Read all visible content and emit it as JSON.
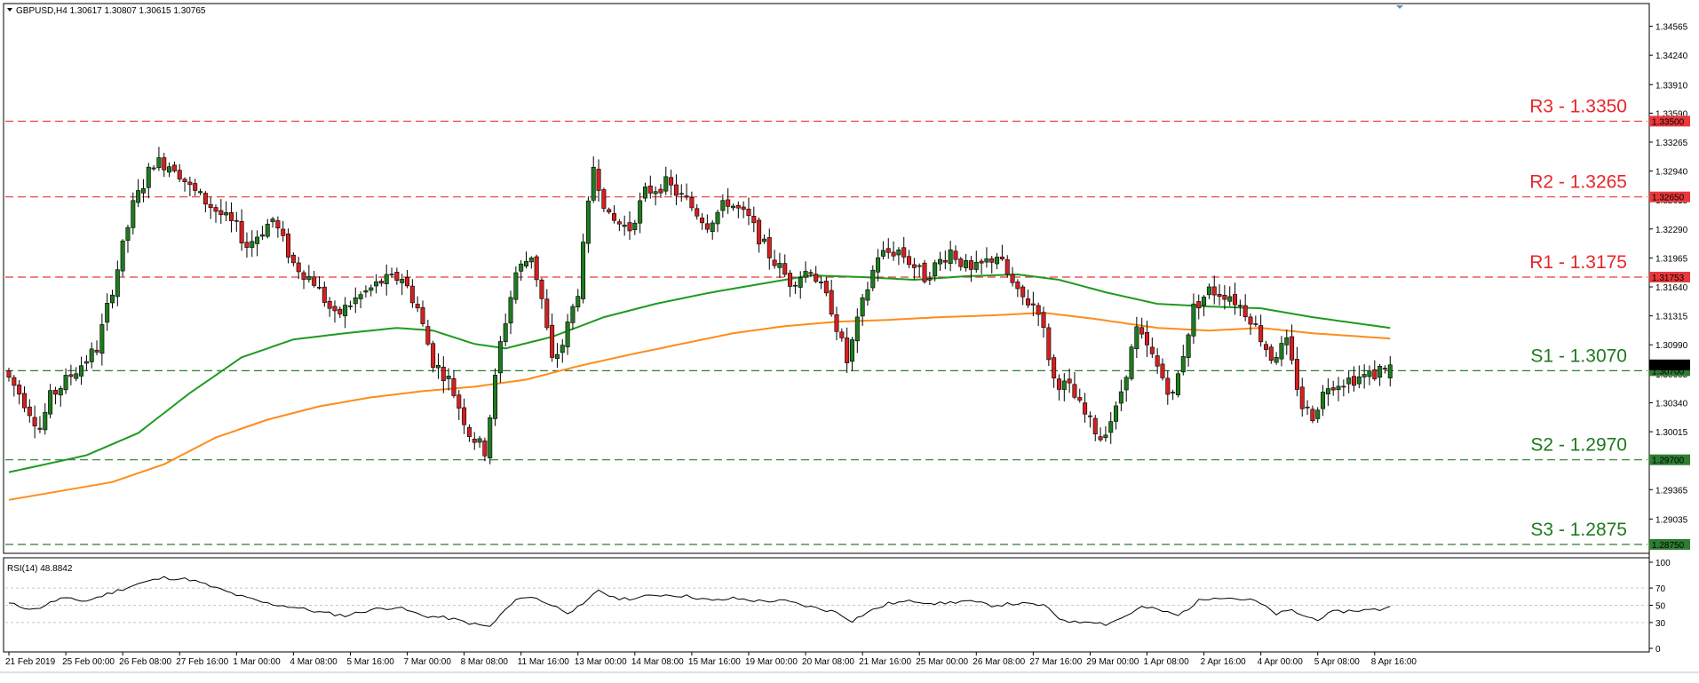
{
  "colors": {
    "bull": "#1f7a1f",
    "bear": "#d32020",
    "resistance": "#e8383a",
    "support": "#2e7d32",
    "ma_fast": "#1f9a1f",
    "ma_slow": "#ff8c1a",
    "rsi_line": "#000000",
    "grid": "#c8c8c8"
  },
  "header": {
    "symbol_line": "GBPUSD,H4  1.30617 1.30807 1.30615 1.30765",
    "rsi_label": "RSI(14) 48.8842"
  },
  "chart_data": {
    "type": "candlestick",
    "symbol": "GBPUSD",
    "timeframe": "H4",
    "ylim": [
      1.2867,
      1.348
    ],
    "y_ticks": [
      "1.34565",
      "1.34240",
      "1.33910",
      "1.33590",
      "1.33265",
      "1.32940",
      "1.32615",
      "1.32290",
      "1.31965",
      "1.31640",
      "1.31315",
      "1.30990",
      "1.30665",
      "1.30340",
      "1.30015",
      "1.29690",
      "1.29365",
      "1.29035"
    ],
    "x_labels": [
      {
        "i": 0,
        "text": "21 Feb 2019"
      },
      {
        "i": 11,
        "text": "25 Feb 00:00"
      },
      {
        "i": 22,
        "text": "26 Feb 08:00"
      },
      {
        "i": 33,
        "text": "27 Feb 16:00"
      },
      {
        "i": 44,
        "text": "1 Mar 00:00"
      },
      {
        "i": 55,
        "text": "4 Mar 08:00"
      },
      {
        "i": 66,
        "text": "5 Mar 16:00"
      },
      {
        "i": 77,
        "text": "7 Mar 00:00"
      },
      {
        "i": 88,
        "text": "8 Mar 08:00"
      },
      {
        "i": 99,
        "text": "11 Mar 16:00"
      },
      {
        "i": 110,
        "text": "13 Mar 00:00"
      },
      {
        "i": 121,
        "text": "14 Mar 08:00"
      },
      {
        "i": 132,
        "text": "15 Mar 16:00"
      },
      {
        "i": 143,
        "text": "19 Mar 00:00"
      },
      {
        "i": 154,
        "text": "20 Mar 08:00"
      },
      {
        "i": 165,
        "text": "21 Mar 16:00"
      },
      {
        "i": 176,
        "text": "25 Mar 00:00"
      },
      {
        "i": 187,
        "text": "26 Mar 08:00"
      },
      {
        "i": 198,
        "text": "27 Mar 16:00"
      },
      {
        "i": 209,
        "text": "29 Mar 00:00"
      },
      {
        "i": 220,
        "text": "1 Apr 08:00"
      },
      {
        "i": 231,
        "text": "2 Apr 16:00"
      },
      {
        "i": 242,
        "text": "4 Apr 00:00"
      },
      {
        "i": 253,
        "text": "5 Apr 08:00"
      },
      {
        "i": 264,
        "text": "8 Apr 16:00"
      }
    ],
    "levels": [
      {
        "name": "R3",
        "label": "R3 - 1.3350",
        "price": 1.335,
        "tag": "1.33500",
        "kind": "resistance"
      },
      {
        "name": "R2",
        "label": "R2 - 1.3265",
        "price": 1.3265,
        "tag": "1.32650",
        "kind": "resistance"
      },
      {
        "name": "R1",
        "label": "R1 - 1.3175",
        "price": 1.3175,
        "tag": "1.31753",
        "kind": "resistance"
      },
      {
        "name": "S1",
        "label": "S1 - 1.3070",
        "price": 1.307,
        "tag": "1.30700",
        "kind": "support"
      },
      {
        "name": "S2",
        "label": "S2 - 1.2970",
        "price": 1.297,
        "tag": "1.29700",
        "kind": "support"
      },
      {
        "name": "S3",
        "label": "S3 - 1.2875",
        "price": 1.2875,
        "tag": "1.28750",
        "kind": "support"
      }
    ],
    "current_price": {
      "tag": "1.30765",
      "price": 1.30765
    },
    "anchors": [
      [
        0,
        1.307
      ],
      [
        3,
        1.3045
      ],
      [
        7,
        1.3005
      ],
      [
        9,
        1.304
      ],
      [
        13,
        1.3065
      ],
      [
        18,
        1.3095
      ],
      [
        22,
        1.3185
      ],
      [
        25,
        1.3255
      ],
      [
        29,
        1.3305
      ],
      [
        33,
        1.33
      ],
      [
        36,
        1.3275
      ],
      [
        40,
        1.3255
      ],
      [
        45,
        1.323
      ],
      [
        47,
        1.321
      ],
      [
        52,
        1.324
      ],
      [
        56,
        1.319
      ],
      [
        60,
        1.317
      ],
      [
        64,
        1.313
      ],
      [
        68,
        1.315
      ],
      [
        73,
        1.317
      ],
      [
        77,
        1.3175
      ],
      [
        80,
        1.314
      ],
      [
        83,
        1.308
      ],
      [
        86,
        1.306
      ],
      [
        90,
        1.3
      ],
      [
        93,
        1.298
      ],
      [
        96,
        1.31
      ],
      [
        99,
        1.318
      ],
      [
        102,
        1.32
      ],
      [
        104,
        1.315
      ],
      [
        106,
        1.308
      ],
      [
        108,
        1.31
      ],
      [
        111,
        1.316
      ],
      [
        114,
        1.33
      ],
      [
        117,
        1.324
      ],
      [
        121,
        1.323
      ],
      [
        124,
        1.327
      ],
      [
        128,
        1.328
      ],
      [
        132,
        1.326
      ],
      [
        136,
        1.3235
      ],
      [
        140,
        1.326
      ],
      [
        144,
        1.324
      ],
      [
        148,
        1.32
      ],
      [
        152,
        1.317
      ],
      [
        156,
        1.3185
      ],
      [
        160,
        1.314
      ],
      [
        163,
        1.308
      ],
      [
        166,
        1.3145
      ],
      [
        169,
        1.32
      ],
      [
        173,
        1.3205
      ],
      [
        178,
        1.3175
      ],
      [
        183,
        1.3205
      ],
      [
        187,
        1.318
      ],
      [
        192,
        1.32
      ],
      [
        196,
        1.3155
      ],
      [
        200,
        1.314
      ],
      [
        203,
        1.306
      ],
      [
        206,
        1.305
      ],
      [
        209,
        1.302
      ],
      [
        212,
        1.2995
      ],
      [
        215,
        1.3025
      ],
      [
        219,
        1.3115
      ],
      [
        222,
        1.3085
      ],
      [
        226,
        1.304
      ],
      [
        230,
        1.314
      ],
      [
        233,
        1.316
      ],
      [
        237,
        1.3155
      ],
      [
        241,
        1.313
      ],
      [
        245,
        1.3085
      ],
      [
        248,
        1.31
      ],
      [
        251,
        1.303
      ],
      [
        253,
        1.302
      ],
      [
        256,
        1.3055
      ],
      [
        260,
        1.306
      ],
      [
        265,
        1.3066
      ],
      [
        267,
        1.30765
      ]
    ],
    "sma_fast": [
      [
        0,
        1.2956
      ],
      [
        15,
        1.2975
      ],
      [
        25,
        1.3
      ],
      [
        35,
        1.3045
      ],
      [
        45,
        1.3085
      ],
      [
        55,
        1.3105
      ],
      [
        65,
        1.3112
      ],
      [
        75,
        1.3118
      ],
      [
        82,
        1.3115
      ],
      [
        90,
        1.31
      ],
      [
        96,
        1.3095
      ],
      [
        105,
        1.3108
      ],
      [
        115,
        1.313
      ],
      [
        125,
        1.3145
      ],
      [
        135,
        1.3157
      ],
      [
        145,
        1.3167
      ],
      [
        155,
        1.3177
      ],
      [
        165,
        1.3175
      ],
      [
        175,
        1.3172
      ],
      [
        185,
        1.3176
      ],
      [
        195,
        1.3178
      ],
      [
        203,
        1.3172
      ],
      [
        212,
        1.3158
      ],
      [
        222,
        1.3145
      ],
      [
        232,
        1.3142
      ],
      [
        242,
        1.314
      ],
      [
        252,
        1.313
      ],
      [
        262,
        1.3122
      ],
      [
        267,
        1.3118
      ]
    ],
    "sma_slow": [
      [
        0,
        1.2925
      ],
      [
        20,
        1.2945
      ],
      [
        30,
        1.2965
      ],
      [
        40,
        1.2995
      ],
      [
        50,
        1.3015
      ],
      [
        60,
        1.303
      ],
      [
        70,
        1.304
      ],
      [
        80,
        1.3047
      ],
      [
        90,
        1.3052
      ],
      [
        100,
        1.306
      ],
      [
        110,
        1.3075
      ],
      [
        120,
        1.3088
      ],
      [
        130,
        1.31
      ],
      [
        140,
        1.3112
      ],
      [
        150,
        1.312
      ],
      [
        160,
        1.3125
      ],
      [
        170,
        1.3127
      ],
      [
        180,
        1.313
      ],
      [
        190,
        1.3132
      ],
      [
        200,
        1.3135
      ],
      [
        210,
        1.3128
      ],
      [
        222,
        1.3118
      ],
      [
        232,
        1.3115
      ],
      [
        242,
        1.3118
      ],
      [
        252,
        1.3112
      ],
      [
        262,
        1.3108
      ],
      [
        267,
        1.3106
      ]
    ],
    "rsi": {
      "label": "RSI(14) 48.8842",
      "levels": [
        70,
        50,
        30
      ],
      "ticks": [
        "100",
        "70",
        "50",
        "30",
        "0"
      ],
      "anchors": [
        [
          0,
          52
        ],
        [
          5,
          45
        ],
        [
          10,
          58
        ],
        [
          15,
          55
        ],
        [
          20,
          65
        ],
        [
          25,
          75
        ],
        [
          30,
          82
        ],
        [
          35,
          80
        ],
        [
          40,
          70
        ],
        [
          45,
          60
        ],
        [
          50,
          52
        ],
        [
          55,
          48
        ],
        [
          60,
          42
        ],
        [
          65,
          38
        ],
        [
          70,
          45
        ],
        [
          75,
          48
        ],
        [
          80,
          38
        ],
        [
          85,
          35
        ],
        [
          90,
          28
        ],
        [
          93,
          25
        ],
        [
          96,
          45
        ],
        [
          99,
          60
        ],
        [
          102,
          58
        ],
        [
          105,
          50
        ],
        [
          108,
          42
        ],
        [
          111,
          50
        ],
        [
          114,
          68
        ],
        [
          117,
          58
        ],
        [
          121,
          58
        ],
        [
          125,
          62
        ],
        [
          128,
          62
        ],
        [
          132,
          60
        ],
        [
          136,
          55
        ],
        [
          140,
          58
        ],
        [
          145,
          55
        ],
        [
          150,
          55
        ],
        [
          155,
          48
        ],
        [
          160,
          42
        ],
        [
          163,
          32
        ],
        [
          166,
          42
        ],
        [
          170,
          52
        ],
        [
          175,
          55
        ],
        [
          180,
          52
        ],
        [
          185,
          55
        ],
        [
          190,
          50
        ],
        [
          195,
          52
        ],
        [
          200,
          50
        ],
        [
          203,
          35
        ],
        [
          206,
          30
        ],
        [
          209,
          32
        ],
        [
          212,
          28
        ],
        [
          215,
          35
        ],
        [
          219,
          48
        ],
        [
          222,
          45
        ],
        [
          226,
          38
        ],
        [
          230,
          55
        ],
        [
          233,
          60
        ],
        [
          237,
          58
        ],
        [
          241,
          55
        ],
        [
          245,
          40
        ],
        [
          248,
          44
        ],
        [
          251,
          36
        ],
        [
          253,
          34
        ],
        [
          256,
          42
        ],
        [
          260,
          44
        ],
        [
          265,
          45
        ],
        [
          267,
          48.9
        ]
      ]
    }
  }
}
